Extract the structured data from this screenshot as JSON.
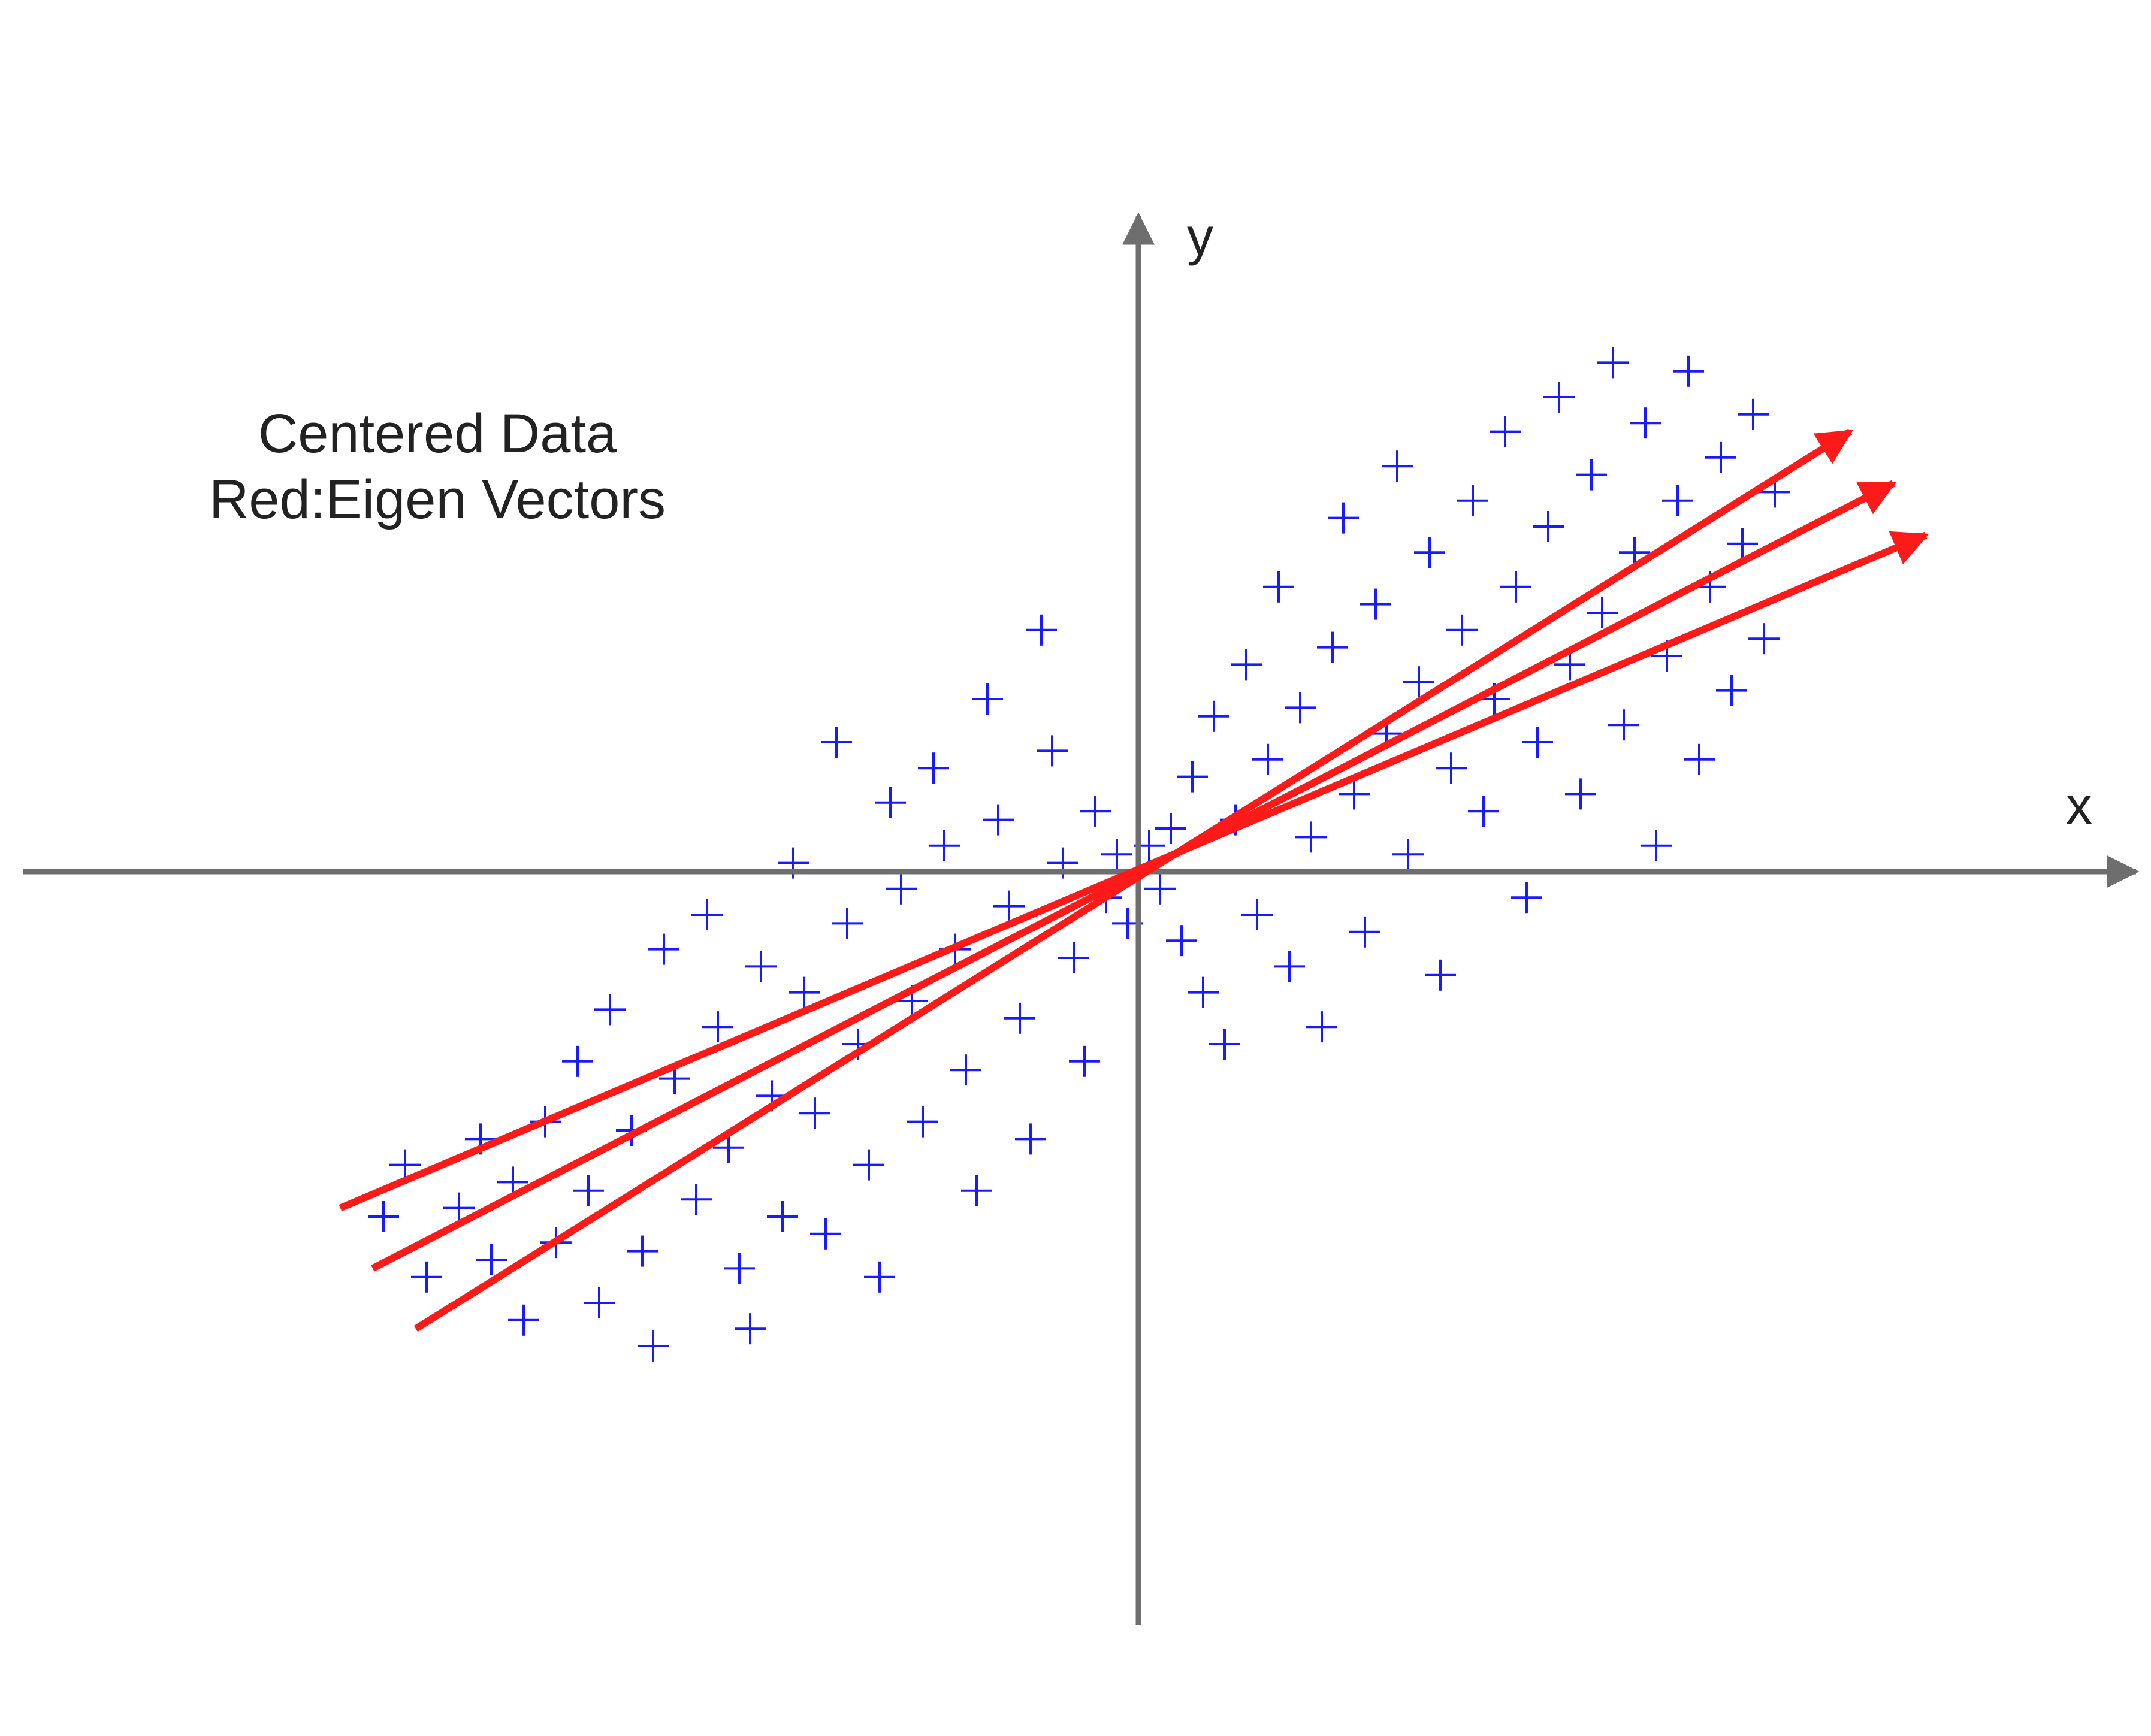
{
  "chart_data": {
    "type": "scatter",
    "title": "Centered Data",
    "subtitle": "Red:Eigen Vectors",
    "xlabel": "x",
    "ylabel": "y",
    "xlim": [
      -1.0,
      1.0
    ],
    "ylim": [
      -0.75,
      0.75
    ],
    "grid": false,
    "legend": "none",
    "marker": "plus",
    "colors": {
      "points": "#1a1aff",
      "vectors": "#ff1a1a",
      "axes": "#6e6e6e",
      "text": "#222222"
    },
    "series": [
      {
        "values": [
          [
            -0.7,
            -0.4
          ],
          [
            -0.68,
            -0.34
          ],
          [
            -0.66,
            -0.47
          ],
          [
            -0.63,
            -0.39
          ],
          [
            -0.61,
            -0.31
          ],
          [
            -0.6,
            -0.45
          ],
          [
            -0.58,
            -0.36
          ],
          [
            -0.57,
            -0.52
          ],
          [
            -0.55,
            -0.29
          ],
          [
            -0.54,
            -0.43
          ],
          [
            -0.52,
            -0.22
          ],
          [
            -0.51,
            -0.37
          ],
          [
            -0.5,
            -0.5
          ],
          [
            -0.49,
            -0.16
          ],
          [
            -0.47,
            -0.3
          ],
          [
            -0.46,
            -0.44
          ],
          [
            -0.45,
            -0.55
          ],
          [
            -0.44,
            -0.09
          ],
          [
            -0.43,
            -0.24
          ],
          [
            -0.41,
            -0.38
          ],
          [
            -0.4,
            -0.05
          ],
          [
            -0.39,
            -0.18
          ],
          [
            -0.38,
            -0.32
          ],
          [
            -0.37,
            -0.46
          ],
          [
            -0.36,
            -0.53
          ],
          [
            -0.35,
            -0.11
          ],
          [
            -0.34,
            -0.26
          ],
          [
            -0.33,
            -0.4
          ],
          [
            -0.32,
            0.01
          ],
          [
            -0.31,
            -0.14
          ],
          [
            -0.3,
            -0.28
          ],
          [
            -0.29,
            -0.42
          ],
          [
            -0.28,
            0.15
          ],
          [
            -0.27,
            -0.06
          ],
          [
            -0.26,
            -0.2
          ],
          [
            -0.25,
            -0.34
          ],
          [
            -0.24,
            -0.47
          ],
          [
            -0.23,
            0.08
          ],
          [
            -0.22,
            -0.02
          ],
          [
            -0.21,
            -0.15
          ],
          [
            -0.2,
            -0.29
          ],
          [
            -0.19,
            0.12
          ],
          [
            -0.18,
            0.03
          ],
          [
            -0.17,
            -0.09
          ],
          [
            -0.16,
            -0.23
          ],
          [
            -0.15,
            -0.37
          ],
          [
            -0.14,
            0.2
          ],
          [
            -0.13,
            0.06
          ],
          [
            -0.12,
            -0.04
          ],
          [
            -0.11,
            -0.17
          ],
          [
            -0.1,
            -0.31
          ],
          [
            -0.09,
            0.28
          ],
          [
            -0.08,
            0.14
          ],
          [
            -0.07,
            0.01
          ],
          [
            -0.06,
            -0.1
          ],
          [
            -0.05,
            -0.22
          ],
          [
            -0.04,
            0.07
          ],
          [
            -0.03,
            -0.03
          ],
          [
            -0.02,
            0.02
          ],
          [
            -0.01,
            -0.06
          ],
          [
            0.0,
            0.0
          ],
          [
            0.01,
            0.03
          ],
          [
            0.02,
            -0.02
          ],
          [
            0.03,
            0.05
          ],
          [
            0.04,
            -0.08
          ],
          [
            0.05,
            0.11
          ],
          [
            0.06,
            -0.14
          ],
          [
            0.07,
            0.18
          ],
          [
            0.08,
            -0.2
          ],
          [
            0.09,
            0.06
          ],
          [
            0.1,
            0.24
          ],
          [
            0.11,
            -0.05
          ],
          [
            0.12,
            0.13
          ],
          [
            0.13,
            0.33
          ],
          [
            0.14,
            -0.11
          ],
          [
            0.15,
            0.19
          ],
          [
            0.16,
            0.04
          ],
          [
            0.17,
            -0.18
          ],
          [
            0.18,
            0.26
          ],
          [
            0.19,
            0.41
          ],
          [
            0.2,
            0.09
          ],
          [
            0.21,
            -0.07
          ],
          [
            0.22,
            0.31
          ],
          [
            0.23,
            0.16
          ],
          [
            0.24,
            0.47
          ],
          [
            0.25,
            0.02
          ],
          [
            0.26,
            0.22
          ],
          [
            0.27,
            0.37
          ],
          [
            0.28,
            -0.12
          ],
          [
            0.29,
            0.12
          ],
          [
            0.3,
            0.28
          ],
          [
            0.31,
            0.43
          ],
          [
            0.32,
            0.07
          ],
          [
            0.33,
            0.2
          ],
          [
            0.34,
            0.51
          ],
          [
            0.35,
            0.33
          ],
          [
            0.36,
            -0.03
          ],
          [
            0.37,
            0.15
          ],
          [
            0.38,
            0.4
          ],
          [
            0.39,
            0.55
          ],
          [
            0.4,
            0.24
          ],
          [
            0.41,
            0.09
          ],
          [
            0.42,
            0.46
          ],
          [
            0.43,
            0.3
          ],
          [
            0.44,
            0.59
          ],
          [
            0.45,
            0.17
          ],
          [
            0.46,
            0.37
          ],
          [
            0.47,
            0.52
          ],
          [
            0.48,
            0.03
          ],
          [
            0.49,
            0.25
          ],
          [
            0.5,
            0.43
          ],
          [
            0.51,
            0.58
          ],
          [
            0.52,
            0.13
          ],
          [
            0.53,
            0.33
          ],
          [
            0.54,
            0.48
          ],
          [
            0.55,
            0.21
          ],
          [
            0.56,
            0.38
          ],
          [
            0.57,
            0.53
          ],
          [
            0.58,
            0.27
          ],
          [
            0.59,
            0.44
          ]
        ]
      }
    ],
    "eigen_vectors": [
      {
        "from": [
          -0.74,
          -0.39
        ],
        "to": [
          0.73,
          0.39
        ]
      },
      {
        "from": [
          -0.71,
          -0.46
        ],
        "to": [
          0.7,
          0.45
        ]
      },
      {
        "from": [
          -0.67,
          -0.53
        ],
        "to": [
          0.66,
          0.51
        ]
      }
    ]
  }
}
